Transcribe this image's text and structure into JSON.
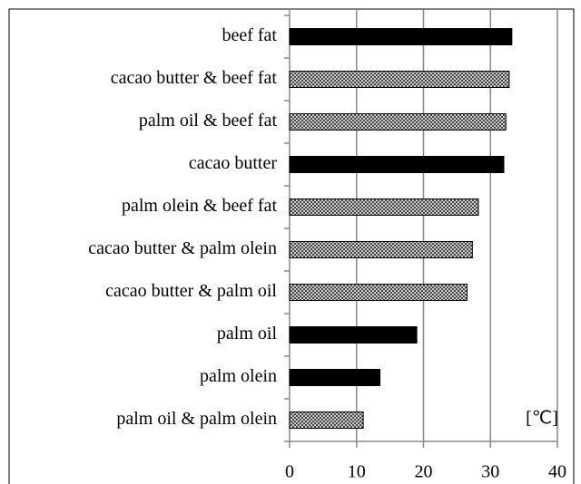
{
  "chart_data": {
    "type": "bar",
    "orientation": "horizontal",
    "categories": [
      "beef fat",
      "cacao butter & beef fat",
      "palm oil & beef fat",
      "cacao butter",
      "palm olein & beef fat",
      "cacao butter & palm olein",
      "cacao butter & palm oil",
      "palm oil",
      "palm olein",
      "palm oil & palm olein"
    ],
    "values": [
      33.2,
      32.8,
      32.3,
      32.0,
      28.2,
      27.3,
      26.5,
      19.0,
      13.5,
      11.0
    ],
    "bar_styles": [
      "solid",
      "hatched",
      "hatched",
      "solid",
      "hatched",
      "hatched",
      "hatched",
      "solid",
      "solid",
      "hatched"
    ],
    "color": "#000000",
    "xlim": [
      0,
      40
    ],
    "xticks": [
      0,
      10,
      20,
      30,
      40
    ],
    "grid": true,
    "unit_label": "[℃]"
  }
}
